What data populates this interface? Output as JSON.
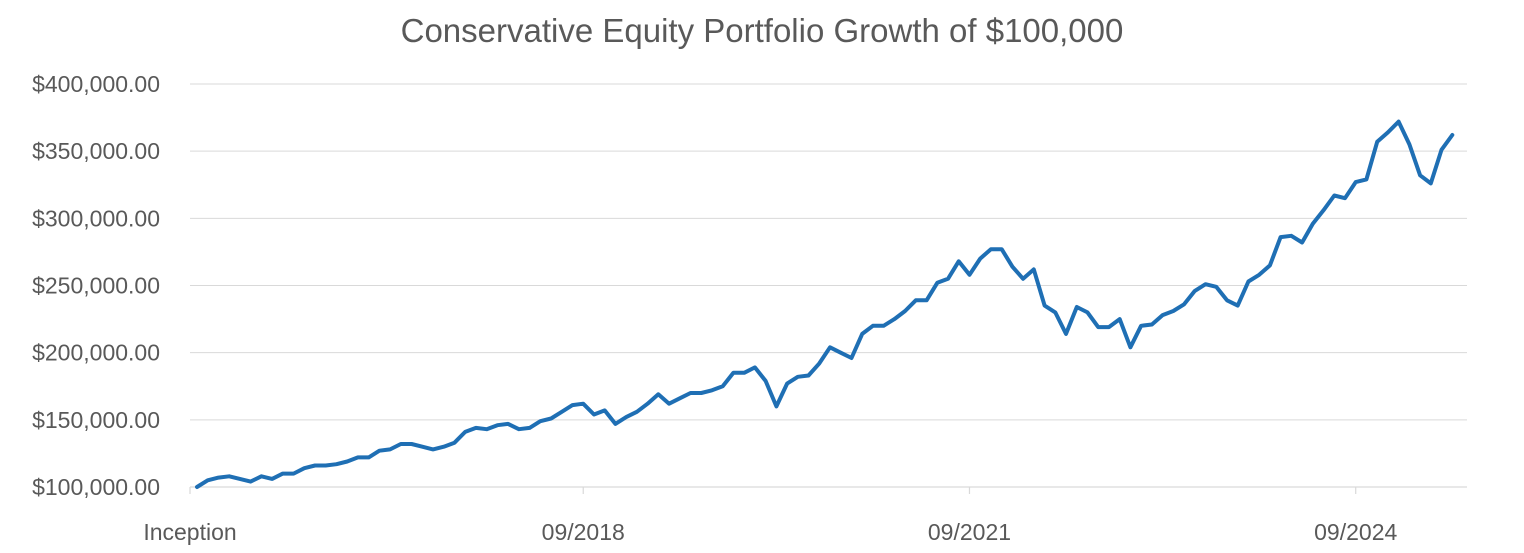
{
  "chart_data": {
    "type": "line",
    "title": "Conservative Equity Portfolio Growth of $100,000",
    "xlabel": "",
    "ylabel": "",
    "ylim": [
      100000,
      400000
    ],
    "y_ticks": [
      100000,
      150000,
      200000,
      250000,
      300000,
      350000,
      400000
    ],
    "y_tick_labels": [
      "$100,000.00",
      "$150,000.00",
      "$200,000.00",
      "$250,000.00",
      "$300,000.00",
      "$350,000.00",
      "$400,000.00"
    ],
    "x_tick_labels": [
      "Inception",
      "09/2018",
      "09/2021",
      "09/2024"
    ],
    "x_tick_months": [
      0,
      36,
      72,
      108
    ],
    "x_range_months": [
      0,
      118
    ],
    "grid": "horizontal",
    "legend": "none",
    "series_color": "#1f6fb4",
    "series": [
      {
        "values": [
          100000,
          105000,
          107000,
          108000,
          106000,
          104000,
          108000,
          106000,
          110000,
          110000,
          114000,
          116000,
          116000,
          117000,
          119000,
          122000,
          122000,
          127000,
          128000,
          132000,
          132000,
          130000,
          128000,
          130000,
          133000,
          141000,
          144000,
          143000,
          146000,
          147000,
          143000,
          144000,
          149000,
          151000,
          156000,
          161000,
          162000,
          154000,
          157000,
          147000,
          152000,
          156000,
          162000,
          169000,
          162000,
          166000,
          170000,
          170000,
          172000,
          175000,
          185000,
          185000,
          189000,
          179000,
          160000,
          177000,
          182000,
          183000,
          192000,
          204000,
          200000,
          196000,
          214000,
          220000,
          220000,
          225000,
          231000,
          239000,
          239000,
          252000,
          255000,
          268000,
          258000,
          270000,
          277000,
          277000,
          264000,
          255000,
          262000,
          235000,
          230000,
          214000,
          234000,
          230000,
          219000,
          219000,
          225000,
          204000,
          220000,
          221000,
          228000,
          231000,
          236000,
          246000,
          251000,
          249000,
          239000,
          235000,
          253000,
          258000,
          265000,
          286000,
          287000,
          282000,
          296000,
          306000,
          317000,
          315000,
          327000,
          329000,
          357000,
          364000,
          372000,
          355000,
          332000,
          326000,
          351000,
          362000
        ]
      }
    ]
  }
}
